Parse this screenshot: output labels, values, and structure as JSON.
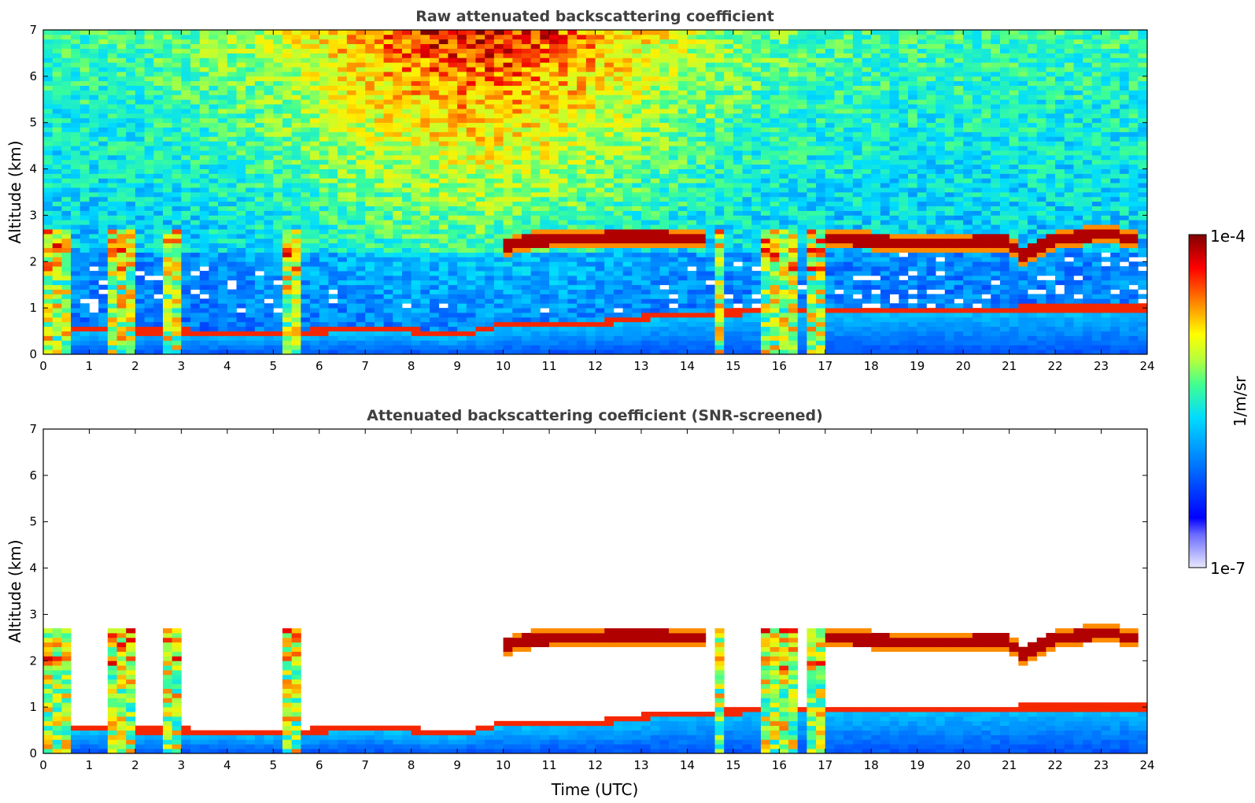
{
  "chart_data": [
    {
      "type": "heatmap",
      "title": "Raw attenuated backscattering coefficient",
      "xlabel": "",
      "ylabel": "Altitude (km)",
      "xlim": [
        0,
        24
      ],
      "ylim": [
        0,
        7
      ],
      "x_ticks": [
        "0",
        "1",
        "2",
        "3",
        "4",
        "5",
        "6",
        "7",
        "8",
        "9",
        "10",
        "11",
        "12",
        "13",
        "14",
        "15",
        "16",
        "17",
        "18",
        "19",
        "20",
        "21",
        "22",
        "23",
        "24"
      ],
      "y_ticks": [
        "0",
        "1",
        "2",
        "3",
        "4",
        "5",
        "6",
        "7"
      ],
      "screened": false,
      "features": {
        "cloud_layer_km": [
          [
            9.9,
            2.3
          ],
          [
            10.5,
            2.45
          ],
          [
            11.5,
            2.5
          ],
          [
            12.5,
            2.55
          ],
          [
            13.2,
            2.55
          ],
          [
            14.2,
            2.5
          ],
          [
            17.0,
            2.5
          ],
          [
            19.0,
            2.4
          ],
          [
            21.0,
            2.45
          ],
          [
            21.2,
            2.1
          ],
          [
            22.0,
            2.5
          ],
          [
            23.2,
            2.6
          ],
          [
            23.8,
            2.45
          ]
        ],
        "boundary_layer_top_km": [
          [
            0,
            0.5
          ],
          [
            2,
            0.45
          ],
          [
            5,
            0.4
          ],
          [
            7.5,
            0.5
          ],
          [
            9,
            0.35
          ],
          [
            10,
            0.6
          ],
          [
            12,
            0.6
          ],
          [
            13.5,
            0.8
          ],
          [
            17,
            0.9
          ],
          [
            24,
            0.95
          ]
        ],
        "low_cloud_column_hours": [
          0.0,
          0.7,
          1.5,
          1.9,
          2.7,
          3.1,
          5.2,
          5.6,
          14.5,
          14.8,
          15.6,
          16.3,
          16.5,
          17.0
        ],
        "data_end_hour": 23.8
      }
    },
    {
      "type": "heatmap",
      "title": "Attenuated backscattering coefficient (SNR-screened)",
      "xlabel": "Time (UTC)",
      "ylabel": "Altitude (km)",
      "xlim": [
        0,
        24
      ],
      "ylim": [
        0,
        7
      ],
      "x_ticks": [
        "0",
        "1",
        "2",
        "3",
        "4",
        "5",
        "6",
        "7",
        "8",
        "9",
        "10",
        "11",
        "12",
        "13",
        "14",
        "15",
        "16",
        "17",
        "18",
        "19",
        "20",
        "21",
        "22",
        "23",
        "24"
      ],
      "y_ticks": [
        "0",
        "1",
        "2",
        "3",
        "4",
        "5",
        "6",
        "7"
      ],
      "screened": true
    }
  ],
  "colorbar": {
    "label": "1/m/sr",
    "max_label": "1e-4",
    "min_label": "1e-7"
  }
}
